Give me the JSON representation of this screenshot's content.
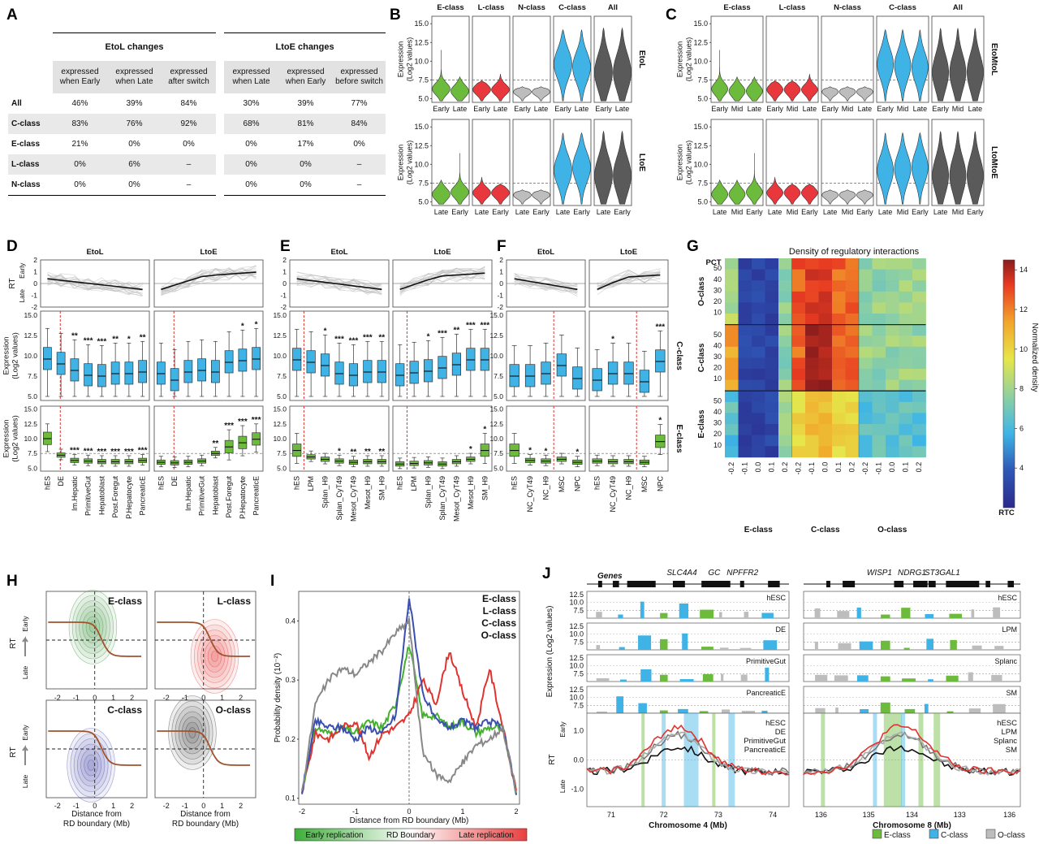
{
  "panel_letters": [
    "A",
    "B",
    "C",
    "D",
    "E",
    "F",
    "G",
    "H",
    "I",
    "J"
  ],
  "panelA": {
    "groups": [
      "EtoL changes",
      "LtoE changes"
    ],
    "col_headers": [
      "expressed when Early",
      "expressed when Late",
      "expressed after switch",
      "expressed when Late",
      "expressed when Early",
      "expressed before switch"
    ],
    "rows": [
      {
        "label": "All",
        "values": [
          "46%",
          "39%",
          "84%",
          "30%",
          "39%",
          "77%"
        ]
      },
      {
        "label": "C-class",
        "values": [
          "83%",
          "76%",
          "92%",
          "68%",
          "81%",
          "84%"
        ]
      },
      {
        "label": "E-class",
        "values": [
          "21%",
          "0%",
          "0%",
          "0%",
          "17%",
          "0%"
        ]
      },
      {
        "label": "L-class",
        "values": [
          "0%",
          "6%",
          "–",
          "0%",
          "0%",
          "–"
        ]
      },
      {
        "label": "N-class",
        "values": [
          "0%",
          "0%",
          "–",
          "0%",
          "0%",
          "–"
        ]
      }
    ]
  },
  "violin_common": {
    "ylabel": "Expression\n(Log2 values)",
    "yticks": [
      "5.0",
      "7.5",
      "10.0",
      "12.5",
      "15.0"
    ],
    "classes": [
      "E-class",
      "L-class",
      "N-class",
      "C-class",
      "All"
    ],
    "colors": {
      "E-class": "#6dbb3d",
      "L-class": "#e8383d",
      "N-class": "#bdbdbd",
      "C-class": "#3fb3e6",
      "All": "#5a5a5a"
    }
  },
  "panelB": {
    "rows": [
      {
        "label": "EtoL",
        "x": [
          "Early",
          "Late"
        ]
      },
      {
        "label": "LtoE",
        "x": [
          "Late",
          "Early"
        ]
      }
    ]
  },
  "panelC": {
    "rows": [
      {
        "label": "EtoMtoL",
        "x": [
          "Early",
          "Mid",
          "Late"
        ]
      },
      {
        "label": "LtoMtoE",
        "x": [
          "Late",
          "Mid",
          "Early"
        ]
      }
    ]
  },
  "panelD": {
    "groups": [
      "EtoL",
      "LtoE"
    ],
    "samples": [
      "hES",
      "DE",
      "Im.Hepatic",
      "PrimitiveGut",
      "Hepatoblast",
      "Post.Foregut",
      "P.Hepatocyte",
      "PancreaticE"
    ],
    "rt_ylabel": "RT",
    "rt_early": "Early",
    "rt_late": "Late",
    "rt_yticks": [
      "-2",
      "-1",
      "0",
      "1",
      "2"
    ],
    "expr_ylabel": "Expression\n(Log2 values)",
    "stars_c": [
      [
        "",
        "",
        "**",
        "***",
        "***",
        "**",
        "*",
        "**"
      ],
      [
        "",
        "",
        "",
        "",
        "",
        "",
        "*",
        "*"
      ]
    ],
    "stars_e": [
      [
        "",
        "",
        "***",
        "***",
        "***",
        "***",
        "***",
        "***"
      ],
      [
        "",
        "",
        "",
        "",
        "**",
        "***",
        "***",
        "***"
      ]
    ]
  },
  "panelE": {
    "groups": [
      "EtoL",
      "LtoE"
    ],
    "samples": [
      "hES",
      "LPM",
      "Splan_H9",
      "Splan_CyT49",
      "Mesot_CyT49",
      "Mesot_H9",
      "SM_H9"
    ],
    "stars_c": [
      [
        "",
        "",
        "*",
        "***",
        "***",
        "***",
        "**"
      ],
      [
        "",
        "",
        "*",
        "***",
        "**",
        "***",
        "***"
      ]
    ],
    "stars_e": [
      [
        "",
        "",
        "",
        "*",
        "**",
        "**",
        "**"
      ],
      [
        "",
        "",
        "",
        "",
        "",
        "*",
        "*"
      ]
    ]
  },
  "panelF": {
    "groups": [
      "EtoL",
      "LtoE"
    ],
    "samples": [
      "hES",
      "NC_CyT49",
      "NC_H9",
      "MSC",
      "NPC"
    ],
    "row_labels": [
      "C-class",
      "E-class"
    ],
    "stars_c": [
      [
        "",
        "",
        "",
        "",
        ""
      ],
      [
        "",
        "*",
        "",
        "",
        "***"
      ]
    ],
    "stars_e": [
      [
        "",
        "*",
        "*",
        "",
        "*"
      ],
      [
        "",
        "",
        "",
        "",
        "*"
      ]
    ]
  },
  "panelG": {
    "title": "Density of regulatory interactions",
    "pct_label": "PCT",
    "rtc_label": "RTC",
    "colorbar_label": "Normalized density",
    "colorbar_ticks": [
      "4",
      "6",
      "8",
      "10",
      "12",
      "14"
    ],
    "row_groups": [
      "O-class",
      "C-class",
      "E-class"
    ],
    "row_ticks": [
      "50",
      "40",
      "30",
      "20",
      "10"
    ],
    "col_groups": [
      "E-class",
      "C-class",
      "O-class"
    ],
    "col_ticks": [
      "-0.2",
      "-0.1",
      "0.0",
      "0.1",
      "0.2"
    ]
  },
  "panelH": {
    "classes": [
      "E-class",
      "L-class",
      "C-class",
      "O-class"
    ],
    "colors": {
      "E-class": "#2e8b2e",
      "L-class": "#e0332f",
      "C-class": "#3a3fa8",
      "O-class": "#222222"
    },
    "xticks": [
      "-2",
      "-1",
      "0",
      "1",
      "2"
    ],
    "xlabel": "Distance from\nRD boundary (Mb)",
    "ylabel": "RT",
    "early": "Early",
    "late": "Late"
  },
  "panelI": {
    "ylabel": "Probability density (10⁻²)",
    "xlabel": "Distance from RD boundary (Mb)",
    "yticks": [
      "0.1",
      "0.2",
      "0.3",
      "0.4"
    ],
    "xticks": [
      "-2",
      "-1",
      "0",
      "1",
      "2"
    ],
    "legend": [
      "E-class",
      "L-class",
      "C-class",
      "O-class"
    ],
    "colors": [
      "#44b02e",
      "#e0332f",
      "#3a4fb0",
      "#888888"
    ],
    "bar_labels": [
      "Early replication",
      "RD Boundary",
      "Late replication"
    ]
  },
  "panelJ": {
    "genes_label": "Genes",
    "left_genes": [
      "SLC4A4",
      "GC",
      "NPFFR2"
    ],
    "right_genes": [
      "WISP1",
      "NDRG1",
      "ST3GAL1"
    ],
    "left_samples": [
      "hESC",
      "DE",
      "PrimitiveGut",
      "PancreaticE"
    ],
    "right_samples": [
      "hESC",
      "LPM",
      "Splanc",
      "SM"
    ],
    "expr_ylabel": "Expression (Log2 values)",
    "expr_ticks": [
      "7.5",
      "10.0",
      "12.5"
    ],
    "rt_ylabel": "RT",
    "rt_ticks": [
      "-1.0",
      "0.0",
      "1.0"
    ],
    "early": "Early",
    "late": "Late",
    "left_xlabel": "Chromosome 4 (Mb)",
    "right_xlabel": "Chromosome 8 (Mb)",
    "left_xticks": [
      "71",
      "72",
      "73",
      "74"
    ],
    "right_xticks": [
      "136",
      "135",
      "134",
      "133",
      "136"
    ],
    "legend": [
      "E-class",
      "C-class",
      "O-class"
    ],
    "legend_colors": [
      "#6dbb3d",
      "#3fb3e6",
      "#bdbdbd"
    ]
  },
  "chart_data": [
    {
      "type": "table",
      "title": "",
      "panel": "A"
    },
    {
      "type": "violin",
      "panel": "B",
      "ylim": [
        4.5,
        16
      ],
      "series": [
        {
          "name": "EtoL",
          "categories": [
            "E-class",
            "L-class",
            "N-class",
            "C-class",
            "All"
          ],
          "medians": [
            [
              6.5,
              6.0
            ],
            [
              6.0,
              6.3
            ],
            [
              5.9,
              5.9
            ],
            [
              9.5,
              9.2
            ],
            [
              8.5,
              8.3
            ]
          ]
        },
        {
          "name": "LtoE",
          "categories": [
            "E-class",
            "L-class",
            "N-class",
            "C-class",
            "All"
          ],
          "medians": [
            [
              6.0,
              6.3
            ],
            [
              6.0,
              6.0
            ],
            [
              5.9,
              5.9
            ],
            [
              9.2,
              9.6
            ],
            [
              8.3,
              8.6
            ]
          ]
        }
      ]
    },
    {
      "type": "violin",
      "panel": "C",
      "ylim": [
        4.5,
        16
      ]
    },
    {
      "type": "box",
      "panel": "D",
      "ylim": [
        4.5,
        15.5
      ],
      "series": [
        {
          "name": "C-class EtoL",
          "medians": [
            9.6,
            9.0,
            8.2,
            7.6,
            7.5,
            7.8,
            7.8,
            8.0
          ]
        },
        {
          "name": "C-class LtoE",
          "medians": [
            7.8,
            7.0,
            8.0,
            8.2,
            8.0,
            9.2,
            9.4,
            9.6
          ]
        },
        {
          "name": "E-class EtoL",
          "medians": [
            10.0,
            7.2,
            6.3,
            6.2,
            6.1,
            6.1,
            6.1,
            6.3
          ]
        },
        {
          "name": "E-class LtoE",
          "medians": [
            6.0,
            5.9,
            6.0,
            6.2,
            7.5,
            8.6,
            9.3,
            9.9
          ]
        }
      ]
    },
    {
      "type": "box",
      "panel": "E",
      "ylim": [
        4.5,
        15.5
      ],
      "series": [
        {
          "name": "C-class EtoL",
          "medians": [
            9.5,
            9.2,
            8.8,
            7.8,
            7.6,
            8.0,
            8.0
          ]
        },
        {
          "name": "C-class LtoE",
          "medians": [
            7.6,
            7.9,
            8.1,
            8.5,
            8.9,
            9.5,
            9.5
          ]
        },
        {
          "name": "E-class EtoL",
          "medians": [
            8.0,
            6.9,
            6.5,
            6.2,
            6.0,
            6.1,
            6.1
          ]
        },
        {
          "name": "E-class LtoE",
          "medians": [
            5.7,
            5.8,
            5.9,
            5.7,
            6.1,
            6.5,
            8.0
          ]
        }
      ]
    },
    {
      "type": "box",
      "panel": "F",
      "ylim": [
        4.5,
        15.5
      ],
      "series": [
        {
          "name": "C-class EtoL",
          "medians": [
            7.5,
            7.5,
            7.8,
            8.8,
            7.2
          ]
        },
        {
          "name": "C-class LtoE",
          "medians": [
            7.0,
            7.8,
            7.8,
            6.8,
            9.3
          ]
        },
        {
          "name": "E-class EtoL",
          "medians": [
            8.0,
            6.3,
            6.2,
            6.5,
            6.0
          ]
        },
        {
          "name": "E-class LtoE",
          "medians": [
            6.2,
            6.1,
            6.1,
            6.0,
            9.5
          ]
        }
      ]
    },
    {
      "type": "heatmap",
      "panel": "G",
      "title": "Density of regulatory interactions",
      "zlim": [
        2,
        14.5
      ]
    },
    {
      "type": "line",
      "panel": "I",
      "xlim": [
        -2,
        2
      ],
      "ylim": [
        0.09,
        0.45
      ],
      "x": [
        -2,
        -1.75,
        -1.5,
        -1.25,
        -1,
        -0.75,
        -0.5,
        -0.25,
        0,
        0.25,
        0.5,
        0.75,
        1,
        1.25,
        1.5,
        1.75,
        2
      ],
      "series": [
        {
          "name": "E-class",
          "values": [
            0.11,
            0.22,
            0.21,
            0.22,
            0.21,
            0.23,
            0.22,
            0.26,
            0.36,
            0.24,
            0.24,
            0.22,
            0.23,
            0.21,
            0.22,
            0.22,
            0.11
          ]
        },
        {
          "name": "L-class",
          "values": [
            0.11,
            0.21,
            0.2,
            0.22,
            0.23,
            0.17,
            0.21,
            0.22,
            0.24,
            0.3,
            0.26,
            0.35,
            0.28,
            0.22,
            0.32,
            0.22,
            0.11
          ]
        },
        {
          "name": "C-class",
          "values": [
            0.11,
            0.23,
            0.22,
            0.22,
            0.2,
            0.22,
            0.21,
            0.24,
            0.44,
            0.28,
            0.23,
            0.22,
            0.23,
            0.22,
            0.23,
            0.22,
            0.11
          ]
        },
        {
          "name": "O-class",
          "values": [
            0.11,
            0.26,
            0.3,
            0.32,
            0.31,
            0.33,
            0.35,
            0.38,
            0.4,
            0.18,
            0.14,
            0.13,
            0.16,
            0.19,
            0.2,
            0.22,
            0.11
          ]
        }
      ]
    }
  ]
}
